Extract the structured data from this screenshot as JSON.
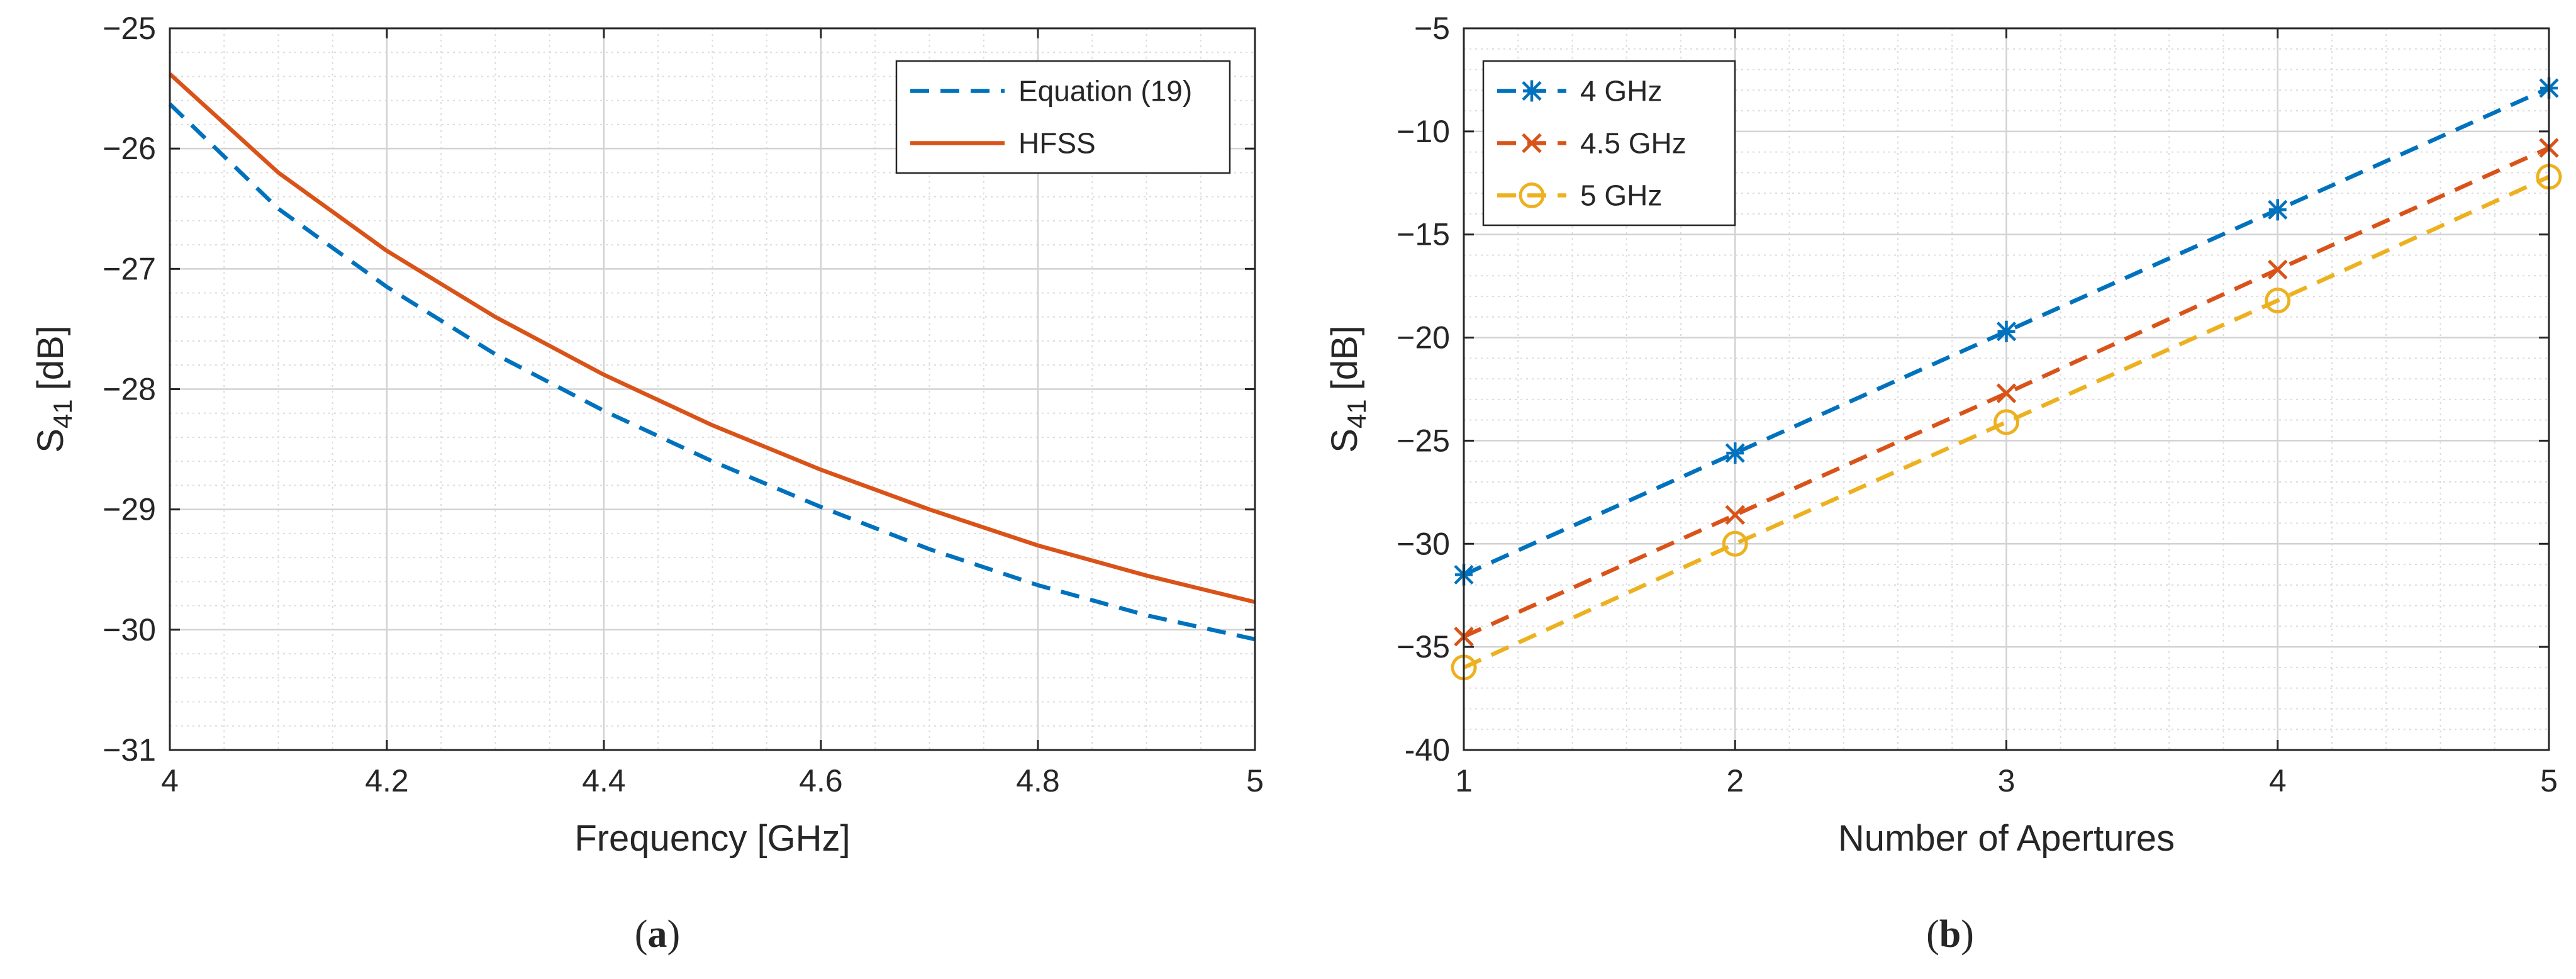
{
  "colors": {
    "blue": "#0072BD",
    "orange": "#D95319",
    "yellow": "#EDB120",
    "axis": "#262626",
    "grid_major": "#d2d2d2",
    "grid_minor": "#dcdcdc"
  },
  "chart_data": [
    {
      "type": "line",
      "panel": "a",
      "caption_letter": "a",
      "xlabel": "Frequency [GHz]",
      "ylabel_base": "S",
      "ylabel_sub": "41",
      "ylabel_unit": "[dB]",
      "xlim": [
        4,
        5
      ],
      "ylim": [
        -31,
        -25
      ],
      "xticks": [
        4,
        4.2,
        4.4,
        4.6,
        4.8,
        5
      ],
      "xtick_labels": [
        "4",
        "4.2",
        "4.4",
        "4.6",
        "4.8",
        "5"
      ],
      "yticks": [
        -31,
        -30,
        -29,
        -28,
        -27,
        -26,
        -25
      ],
      "ytick_labels": [
        "−31",
        "−30",
        "−29",
        "−28",
        "−27",
        "−26",
        "−25"
      ],
      "grid": true,
      "legend_position": "top-right",
      "x": [
        4.0,
        4.1,
        4.2,
        4.3,
        4.4,
        4.5,
        4.6,
        4.7,
        4.8,
        4.9,
        5.0
      ],
      "series": [
        {
          "name": "Equation (19)",
          "color_key": "blue",
          "line_style": "dashed",
          "values": [
            -25.63,
            -26.5,
            -27.15,
            -27.71,
            -28.18,
            -28.6,
            -28.98,
            -29.33,
            -29.63,
            -29.88,
            -30.08
          ]
        },
        {
          "name": "HFSS",
          "color_key": "orange",
          "line_style": "solid",
          "values": [
            -25.38,
            -26.2,
            -26.85,
            -27.4,
            -27.88,
            -28.3,
            -28.67,
            -29.0,
            -29.3,
            -29.55,
            -29.77
          ]
        }
      ]
    },
    {
      "type": "line",
      "panel": "b",
      "caption_letter": "b",
      "xlabel": "Number of Apertures",
      "ylabel_base": "S",
      "ylabel_sub": "41",
      "ylabel_unit": "[dB]",
      "xlim": [
        1,
        5
      ],
      "ylim": [
        -40,
        -5
      ],
      "xticks": [
        1,
        2,
        3,
        4,
        5
      ],
      "xtick_labels": [
        "1",
        "2",
        "3",
        "4",
        "5"
      ],
      "yticks": [
        -40,
        -35,
        -30,
        -25,
        -20,
        -15,
        -10,
        -5
      ],
      "ytick_labels": [
        "-40",
        "−35",
        "−30",
        "−25",
        "−20",
        "−15",
        "−10",
        "−5"
      ],
      "grid": true,
      "legend_position": "top-left",
      "x": [
        1,
        2,
        3,
        4,
        5
      ],
      "series": [
        {
          "name": "4 GHz",
          "color_key": "blue",
          "line_style": "dashed",
          "marker": "asterisk",
          "values": [
            -31.5,
            -25.6,
            -19.7,
            -13.8,
            -7.9
          ]
        },
        {
          "name": "4.5 GHz",
          "color_key": "orange",
          "line_style": "dashed",
          "marker": "cross",
          "values": [
            -34.5,
            -28.6,
            -22.7,
            -16.7,
            -10.8
          ]
        },
        {
          "name": "5 GHz",
          "color_key": "yellow",
          "line_style": "dashed",
          "marker": "circle",
          "values": [
            -36.0,
            -30.0,
            -24.1,
            -18.2,
            -12.2
          ]
        }
      ]
    }
  ]
}
